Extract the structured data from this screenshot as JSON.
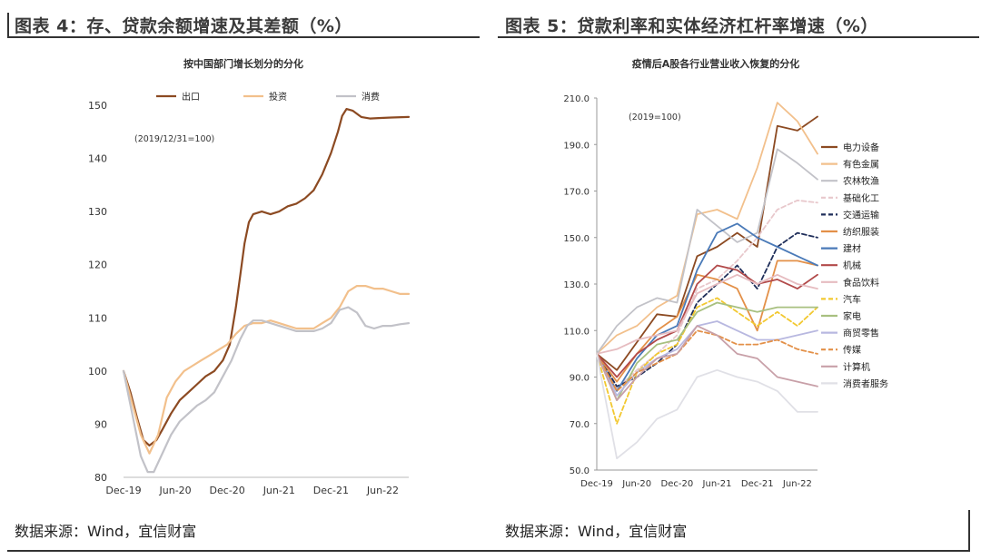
{
  "figures": [
    {
      "figure_title": "图表 4：存、贷款余额增速及其差额（%）",
      "source": "数据来源：Wind，宜信财富"
    },
    {
      "figure_title": "图表 5：贷款利率和实体经济杠杆率增速（%）",
      "source": "数据来源：Wind，宜信财富"
    }
  ],
  "chart_data": [
    {
      "type": "line",
      "title": "按中国部门增长划分的分化",
      "annotation": "(2019/12/31=100)",
      "xlabel": "",
      "ylabel": "",
      "x_range": [
        0,
        33
      ],
      "x_ticks": [
        {
          "x": 0,
          "label": "Dec-19"
        },
        {
          "x": 6,
          "label": "Jun-20"
        },
        {
          "x": 12,
          "label": "Dec-20"
        },
        {
          "x": 18,
          "label": "Jun-21"
        },
        {
          "x": 24,
          "label": "Dec-21"
        },
        {
          "x": 30,
          "label": "Jun-22"
        }
      ],
      "ylim": [
        80,
        150
      ],
      "y_ticks": [
        80,
        90,
        100,
        110,
        120,
        130,
        140,
        150
      ],
      "legend_position": "top",
      "series": [
        {
          "name": "出口",
          "color": "#8c4a22",
          "dash": "solid",
          "x": [
            0,
            0.8,
            1.6,
            2.3,
            3,
            3.8,
            4.5,
            5.5,
            6.5,
            7.5,
            8.5,
            9.5,
            10.5,
            11.5,
            12.3,
            13,
            13.5,
            14,
            14.5,
            15,
            16,
            17,
            18,
            19,
            20,
            21,
            22,
            23,
            24,
            24.8,
            25.3,
            25.8,
            26.5,
            27.5,
            28.5,
            29.5,
            31,
            33
          ],
          "y": [
            100,
            96,
            91,
            87,
            86,
            87,
            89,
            92,
            94.5,
            96,
            97.5,
            99,
            100,
            102,
            105,
            112,
            118,
            124,
            128,
            129.5,
            130,
            129.5,
            130,
            131,
            131.5,
            132.5,
            134,
            137,
            141,
            145,
            148,
            149.3,
            149,
            147.8,
            147.5,
            147.6,
            147.7,
            147.8
          ]
        },
        {
          "name": "投资",
          "color": "#f2c08c",
          "dash": "solid",
          "x": [
            0,
            1,
            2,
            3,
            4,
            5,
            6,
            7,
            8,
            9,
            10,
            11,
            12,
            13,
            14,
            15,
            16,
            17,
            18,
            19,
            20,
            21,
            22,
            23,
            24,
            25,
            26,
            27,
            28,
            29,
            30,
            31,
            32,
            33
          ],
          "y": [
            100,
            94,
            88,
            84.5,
            88,
            95,
            98,
            100,
            101,
            102,
            103,
            104,
            105,
            107,
            108.5,
            109,
            109,
            109.5,
            109,
            108.5,
            108,
            108,
            108,
            109,
            110,
            112,
            115,
            116,
            116,
            115.5,
            115.5,
            115,
            114.5,
            114.5
          ]
        },
        {
          "name": "消费",
          "color": "#c2c2c8",
          "dash": "solid",
          "x": [
            0,
            1,
            2,
            2.8,
            3.5,
            4.5,
            5.5,
            6.5,
            7.5,
            8.5,
            9.5,
            10.5,
            11.5,
            12.5,
            13.5,
            14.3,
            15,
            16,
            17,
            18,
            19,
            20,
            21,
            22,
            23,
            24,
            25,
            26,
            27,
            28,
            29,
            30,
            31,
            32,
            33
          ],
          "y": [
            100,
            92,
            84,
            81,
            81,
            84.5,
            88,
            90.5,
            92,
            93.5,
            94.5,
            96,
            99,
            102,
            106,
            108.5,
            109.5,
            109.5,
            109,
            108.5,
            108,
            107.5,
            107.5,
            107.5,
            108,
            109,
            111.5,
            112,
            111,
            108.5,
            108,
            108.5,
            108.5,
            108.8,
            109
          ]
        }
      ]
    },
    {
      "type": "line",
      "title": "疫情后A股各行业营业收入恢复的分化",
      "annotation": "(2019=100)",
      "xlabel": "",
      "ylabel": "",
      "x_range": [
        0,
        11
      ],
      "x_ticks": [
        {
          "x": 0,
          "label": "Dec-19"
        },
        {
          "x": 2,
          "label": "Jun-20"
        },
        {
          "x": 4,
          "label": "Dec-20"
        },
        {
          "x": 6,
          "label": "Jun-21"
        },
        {
          "x": 8,
          "label": "Dec-21"
        },
        {
          "x": 10,
          "label": "Jun-22"
        }
      ],
      "ylim": [
        50,
        210
      ],
      "y_ticks": [
        50.0,
        70.0,
        90.0,
        110.0,
        130.0,
        150.0,
        170.0,
        190.0,
        210.0
      ],
      "legend_position": "right",
      "series": [
        {
          "name": "电力设备",
          "color": "#8c4a22",
          "dash": "solid",
          "x": [
            0,
            1,
            2,
            3,
            4,
            5,
            6,
            7,
            8,
            9,
            10,
            11
          ],
          "y": [
            100,
            93,
            105,
            117,
            116,
            142,
            146,
            152,
            146,
            198,
            196,
            202
          ]
        },
        {
          "name": "有色金属",
          "color": "#f2c08c",
          "dash": "solid",
          "x": [
            0,
            1,
            2,
            3,
            4,
            5,
            6,
            7,
            8,
            9,
            10,
            11
          ],
          "y": [
            100,
            108,
            112,
            120,
            125,
            160,
            162,
            158,
            180,
            208,
            200,
            186
          ]
        },
        {
          "name": "农林牧渔",
          "color": "#c2c2c8",
          "dash": "solid",
          "x": [
            0,
            1,
            2,
            3,
            4,
            5,
            6,
            7,
            8,
            9,
            10,
            11
          ],
          "y": [
            100,
            112,
            120,
            124,
            122,
            162,
            155,
            148,
            152,
            188,
            182,
            175
          ]
        },
        {
          "name": "基础化工",
          "color": "#e8c8cc",
          "dash": "dash",
          "x": [
            0,
            1,
            2,
            3,
            4,
            5,
            6,
            7,
            8,
            9,
            10,
            11
          ],
          "y": [
            100,
            85,
            93,
            100,
            108,
            128,
            132,
            140,
            150,
            162,
            166,
            165
          ]
        },
        {
          "name": "交通运输",
          "color": "#1f2e5a",
          "dash": "dash",
          "x": [
            0,
            1,
            2,
            3,
            4,
            5,
            6,
            7,
            8,
            9,
            10,
            11
          ],
          "y": [
            100,
            86,
            90,
            96,
            104,
            122,
            130,
            138,
            128,
            146,
            152,
            150
          ]
        },
        {
          "name": "纺织服装",
          "color": "#e39048",
          "dash": "solid",
          "x": [
            0,
            1,
            2,
            3,
            4,
            5,
            6,
            7,
            8,
            9,
            10,
            11
          ],
          "y": [
            100,
            88,
            100,
            110,
            116,
            134,
            132,
            128,
            110,
            140,
            140,
            138
          ]
        },
        {
          "name": "建材",
          "color": "#4a7ab8",
          "dash": "solid",
          "x": [
            0,
            1,
            2,
            3,
            4,
            5,
            6,
            7,
            8,
            9,
            10,
            11
          ],
          "y": [
            100,
            84,
            98,
            108,
            112,
            136,
            152,
            156,
            150,
            146,
            142,
            138
          ]
        },
        {
          "name": "机械",
          "color": "#b24a4a",
          "dash": "solid",
          "x": [
            0,
            1,
            2,
            3,
            4,
            5,
            6,
            7,
            8,
            9,
            10,
            11
          ],
          "y": [
            100,
            90,
            100,
            106,
            110,
            130,
            138,
            136,
            130,
            132,
            128,
            134
          ]
        },
        {
          "name": "食品饮料",
          "color": "#e6bcc0",
          "dash": "solid",
          "x": [
            0,
            1,
            2,
            3,
            4,
            5,
            6,
            7,
            8,
            9,
            10,
            11
          ],
          "y": [
            100,
            102,
            106,
            108,
            110,
            126,
            130,
            134,
            130,
            134,
            130,
            128
          ]
        },
        {
          "name": "汽车",
          "color": "#f2c830",
          "dash": "dash",
          "x": [
            0,
            1,
            2,
            3,
            4,
            5,
            6,
            7,
            8,
            9,
            10,
            11
          ],
          "y": [
            100,
            70,
            92,
            100,
            104,
            120,
            124,
            118,
            112,
            118,
            112,
            120
          ]
        },
        {
          "name": "家电",
          "color": "#a8c080",
          "dash": "solid",
          "x": [
            0,
            1,
            2,
            3,
            4,
            5,
            6,
            7,
            8,
            9,
            10,
            11
          ],
          "y": [
            100,
            80,
            96,
            104,
            106,
            118,
            122,
            120,
            118,
            120,
            120,
            120
          ]
        },
        {
          "name": "商贸零售",
          "color": "#b8b8e0",
          "dash": "solid",
          "x": [
            0,
            1,
            2,
            3,
            4,
            5,
            6,
            7,
            8,
            9,
            10,
            11
          ],
          "y": [
            100,
            82,
            92,
            98,
            102,
            112,
            114,
            110,
            106,
            106,
            108,
            110
          ]
        },
        {
          "name": "传媒",
          "color": "#e39048",
          "dash": "dash",
          "x": [
            0,
            1,
            2,
            3,
            4,
            5,
            6,
            7,
            8,
            9,
            10,
            11
          ],
          "y": [
            100,
            84,
            92,
            96,
            100,
            110,
            108,
            104,
            104,
            106,
            102,
            100
          ]
        },
        {
          "name": "计算机",
          "color": "#c8a0a8",
          "dash": "solid",
          "x": [
            0,
            1,
            2,
            3,
            4,
            5,
            6,
            7,
            8,
            9,
            10,
            11
          ],
          "y": [
            100,
            80,
            90,
            98,
            100,
            112,
            108,
            100,
            98,
            90,
            88,
            86
          ]
        },
        {
          "name": "消费者服务",
          "color": "#e0e0e6",
          "dash": "solid",
          "x": [
            0,
            1,
            2,
            3,
            4,
            5,
            6,
            7,
            8,
            9,
            10,
            11
          ],
          "y": [
            100,
            55,
            62,
            72,
            76,
            90,
            93,
            90,
            88,
            84,
            75,
            75
          ]
        }
      ]
    }
  ]
}
